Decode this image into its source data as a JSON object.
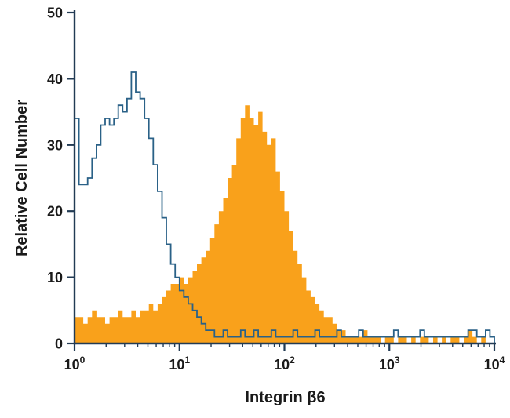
{
  "chart_data": {
    "type": "histogram",
    "title": "",
    "xlabel": "Integrin β6",
    "ylabel": "Relative Cell Number",
    "x_scale": "log10",
    "x_decades": [
      0,
      4
    ],
    "xlim": [
      1,
      10000
    ],
    "ylim": [
      0,
      50
    ],
    "grid": false,
    "legend": "none",
    "y_ticks": [
      0,
      10,
      20,
      30,
      40,
      50
    ],
    "x_tick_labels": [
      {
        "base": "10",
        "exp": "0"
      },
      {
        "base": "10",
        "exp": "1"
      },
      {
        "base": "10",
        "exp": "2"
      },
      {
        "base": "10",
        "exp": "3"
      },
      {
        "base": "10",
        "exp": "4"
      }
    ],
    "bins_per_decade": 24,
    "axis_color": "#223b54",
    "text_color": "#1a1a1a",
    "series": [
      {
        "name": "filled-orange-histogram",
        "style": "filled",
        "color": "#F9A11B",
        "peak": {
          "x": 42,
          "y": 36
        },
        "values": [
          4,
          4,
          3,
          4,
          5,
          4,
          4,
          3,
          4,
          4,
          5,
          4,
          4,
          5,
          4,
          5,
          5,
          6,
          5,
          6,
          7,
          8,
          9,
          9,
          10,
          9,
          10,
          11,
          12,
          13,
          14,
          16,
          18,
          20,
          22,
          25,
          27,
          31,
          34,
          36,
          34,
          33,
          35,
          32,
          30,
          31,
          26,
          23,
          20,
          17,
          14,
          12,
          10,
          8,
          7,
          6,
          5,
          4,
          4,
          3,
          2,
          2,
          1,
          1,
          1,
          1,
          2,
          1,
          1,
          1,
          0,
          1,
          1,
          0,
          1,
          1,
          0,
          1,
          0,
          1,
          1,
          0,
          1,
          0,
          1,
          0,
          1,
          1,
          0,
          1,
          2,
          1,
          0,
          1,
          0,
          0
        ]
      },
      {
        "name": "open-blue-histogram",
        "style": "open",
        "color": "#2A6187",
        "peak": {
          "x": 3.5,
          "y": 41
        },
        "values": [
          34,
          24,
          24,
          25,
          28,
          30,
          33,
          34,
          33,
          34,
          36,
          35,
          37,
          41,
          38,
          37,
          34,
          31,
          27,
          23,
          19,
          15,
          12,
          10,
          8,
          7,
          6,
          5,
          4,
          3,
          2,
          2,
          1,
          1,
          2,
          1,
          1,
          1,
          2,
          1,
          1,
          2,
          1,
          1,
          1,
          2,
          1,
          1,
          1,
          1,
          2,
          1,
          1,
          1,
          1,
          2,
          1,
          1,
          1,
          1,
          2,
          1,
          1,
          1,
          1,
          2,
          1,
          1,
          1,
          1,
          1,
          1,
          1,
          2,
          1,
          1,
          1,
          1,
          1,
          2,
          1,
          1,
          1,
          1,
          1,
          1,
          1,
          1,
          1,
          1,
          2,
          2,
          1,
          1,
          2,
          1
        ]
      }
    ]
  }
}
